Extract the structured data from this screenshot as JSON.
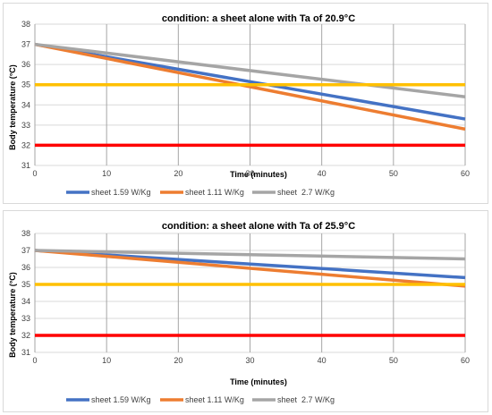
{
  "chart_data": [
    {
      "type": "line",
      "title": "condition: a sheet alone with Ta of 20.9°C",
      "xlabel": "Time (minutes)",
      "ylabel": "Body temperature (°C)",
      "xlim": [
        0,
        60
      ],
      "ylim": [
        31,
        38
      ],
      "xticks": [
        0,
        10,
        20,
        30,
        40,
        50,
        60
      ],
      "yticks": [
        31,
        32,
        33,
        34,
        35,
        36,
        37,
        38
      ],
      "grid": true,
      "legend_position": "bottom",
      "series": [
        {
          "name": "sheet 1.59 W/Kg",
          "color": "#4472c4",
          "x": [
            0,
            60
          ],
          "y": [
            37.0,
            33.3
          ],
          "in_legend": true
        },
        {
          "name": "sheet 1.11 W/Kg",
          "color": "#ed7d31",
          "x": [
            0,
            60
          ],
          "y": [
            37.0,
            32.8
          ],
          "in_legend": true
        },
        {
          "name": "sheet  2.7 W/Kg",
          "color": "#a5a5a5",
          "x": [
            0,
            60
          ],
          "y": [
            37.0,
            34.4
          ],
          "in_legend": true
        },
        {
          "name": "",
          "color": "#ffc000",
          "x": [
            0,
            60
          ],
          "y": [
            35.0,
            35.0
          ],
          "in_legend": false
        },
        {
          "name": "",
          "color": "#ff0000",
          "x": [
            0,
            60
          ],
          "y": [
            32.0,
            32.0
          ],
          "in_legend": false
        }
      ]
    },
    {
      "type": "line",
      "title": "condition: a sheet alone with Ta of 25.9°C",
      "xlabel": "Time (minutes)",
      "ylabel": "Body temperature (°C)",
      "xlim": [
        0,
        60
      ],
      "ylim": [
        31,
        38
      ],
      "xticks": [
        0,
        10,
        20,
        30,
        40,
        50,
        60
      ],
      "yticks": [
        31,
        32,
        33,
        34,
        35,
        36,
        37,
        38
      ],
      "grid": true,
      "legend_position": "bottom",
      "series": [
        {
          "name": "sheet 1.59 W/Kg",
          "color": "#4472c4",
          "x": [
            0,
            60
          ],
          "y": [
            37.0,
            35.4
          ],
          "in_legend": true
        },
        {
          "name": "sheet 1.11 W/Kg",
          "color": "#ed7d31",
          "x": [
            0,
            60
          ],
          "y": [
            37.0,
            34.9
          ],
          "in_legend": true
        },
        {
          "name": "sheet  2.7 W/Kg",
          "color": "#a5a5a5",
          "x": [
            0,
            60
          ],
          "y": [
            37.0,
            36.5
          ],
          "in_legend": true
        },
        {
          "name": "",
          "color": "#ffc000",
          "x": [
            0,
            60
          ],
          "y": [
            35.0,
            35.0
          ],
          "in_legend": false
        },
        {
          "name": "",
          "color": "#ff0000",
          "x": [
            0,
            60
          ],
          "y": [
            32.0,
            32.0
          ],
          "in_legend": false
        }
      ]
    }
  ]
}
